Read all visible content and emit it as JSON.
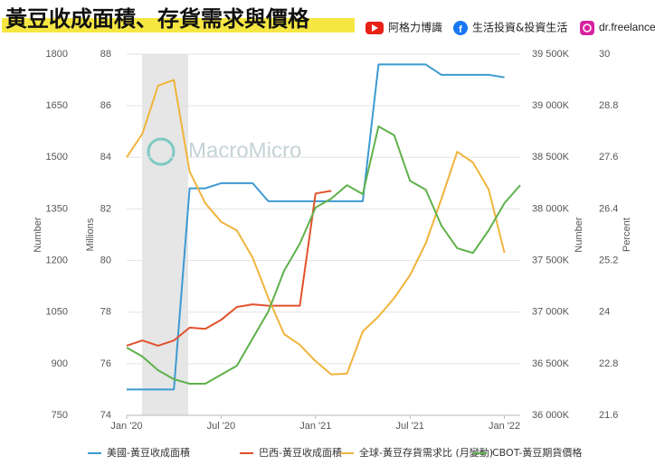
{
  "header": {
    "title": "黃豆收成面積、存貨需求與價格",
    "channels": [
      {
        "name": "阿格力博識"
      },
      {
        "name": "生活投資&投資生活"
      },
      {
        "name": "dr.freelancer"
      }
    ]
  },
  "chart_data": {
    "type": "line",
    "watermark": "MacroMicro",
    "x": [
      "2020-01",
      "2020-02",
      "2020-03",
      "2020-04",
      "2020-05",
      "2020-06",
      "2020-07",
      "2020-08",
      "2020-09",
      "2020-10",
      "2020-11",
      "2020-12",
      "2021-01",
      "2021-02",
      "2021-03",
      "2021-04",
      "2021-05",
      "2021-06",
      "2021-07",
      "2021-08",
      "2021-09",
      "2021-10",
      "2021-11",
      "2021-12",
      "2022-01",
      "2022-02"
    ],
    "xlim": [
      "2020-01",
      "2022-02"
    ],
    "xticks": [
      {
        "value": "2020-01",
        "label": "Jan '20"
      },
      {
        "value": "2020-07",
        "label": "Jul '20"
      },
      {
        "value": "2021-01",
        "label": "Jan '21"
      },
      {
        "value": "2021-07",
        "label": "Jul '21"
      },
      {
        "value": "2022-01",
        "label": "Jan '22"
      }
    ],
    "ylabel": "Number",
    "ylim": [
      750,
      1800
    ],
    "yticks": [
      750,
      900,
      1050,
      1200,
      1350,
      1500,
      1650,
      1800
    ],
    "y2label": "Millions",
    "y2lim": [
      74,
      88
    ],
    "y2ticks": [
      74,
      76,
      78,
      80,
      82,
      84,
      86,
      88
    ],
    "y3label": "Number",
    "y3lim": [
      36000000,
      39500000
    ],
    "y3ticks": [
      {
        "value": 36000000,
        "label": "36 000K"
      },
      {
        "value": 36500000,
        "label": "36 500K"
      },
      {
        "value": 37000000,
        "label": "37 000K"
      },
      {
        "value": 37500000,
        "label": "37 500K"
      },
      {
        "value": 38000000,
        "label": "38 000K"
      },
      {
        "value": 38500000,
        "label": "38 500K"
      },
      {
        "value": 39000000,
        "label": "39 000K"
      },
      {
        "value": 39500000,
        "label": "39 500K"
      }
    ],
    "y4label": "Percent",
    "y4lim": [
      21.6,
      30
    ],
    "y4ticks": [
      21.6,
      22.8,
      24,
      25.2,
      26.4,
      27.6,
      28.8,
      30
    ],
    "grid": true,
    "series": [
      {
        "name": "美國-黃豆收成面積",
        "color": "#3d9ad1",
        "axis": "y2",
        "values": [
          75.0,
          75.0,
          75.0,
          75.0,
          82.8,
          82.8,
          83.0,
          83.0,
          83.0,
          82.3,
          82.3,
          82.3,
          82.3,
          82.3,
          82.3,
          82.3,
          87.6,
          87.6,
          87.6,
          87.6,
          87.2,
          87.2,
          87.2,
          87.2,
          87.1,
          null
        ]
      },
      {
        "name": "巴西-黃豆收成面積",
        "color": "#e0522c",
        "axis": "y2",
        "values": [
          76.7,
          76.9,
          76.7,
          76.9,
          77.4,
          77.35,
          77.7,
          78.2,
          78.3,
          78.25,
          78.25,
          78.25,
          82.6,
          82.7,
          null,
          null,
          null,
          null,
          null,
          null,
          null,
          null,
          null,
          null,
          null,
          null
        ]
      },
      {
        "name": "全球-黃豆存貨需求比 (月變動)",
        "color": "#f0b43c",
        "axis": "y4",
        "values": [
          27.6,
          28.15,
          29.27,
          29.4,
          27.27,
          26.53,
          26.1,
          25.9,
          25.27,
          24.33,
          23.49,
          23.24,
          22.86,
          22.55,
          22.57,
          23.55,
          23.9,
          24.33,
          24.86,
          25.6,
          26.64,
          27.73,
          27.48,
          26.85,
          25.38,
          null
        ]
      },
      {
        "name": "CBOT-黃豆期貨價格",
        "color": "#5fb14b",
        "axis": "y",
        "values": [
          947,
          921,
          881,
          855,
          842,
          842,
          868,
          894,
          973,
          1052,
          1170,
          1249,
          1354,
          1380,
          1419,
          1393,
          1590,
          1564,
          1432,
          1406,
          1301,
          1236,
          1222,
          1288,
          1367,
          1419
        ]
      }
    ]
  }
}
